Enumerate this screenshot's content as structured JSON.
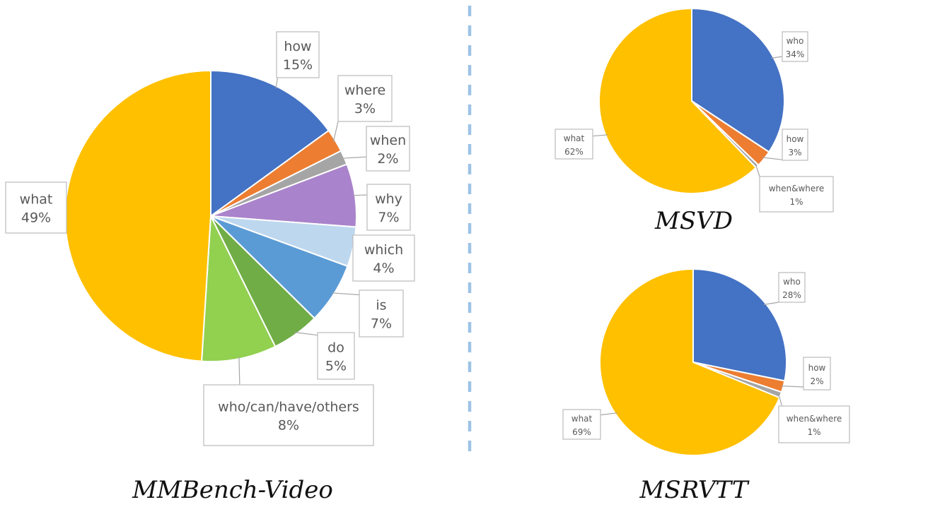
{
  "chart_data": [
    {
      "type": "pie",
      "title": "MMBench-Video",
      "slices": [
        {
          "label": "how",
          "pct_label": "15%",
          "value": 15,
          "color": "#4472c4"
        },
        {
          "label": "where",
          "pct_label": "3%",
          "value": 2.6,
          "color": "#ed7d31"
        },
        {
          "label": "when",
          "pct_label": "2%",
          "value": 1.6,
          "color": "#a5a5a5"
        },
        {
          "label": "why",
          "pct_label": "7%",
          "value": 7.0,
          "color": "#a983cb"
        },
        {
          "label": "which",
          "pct_label": "4%",
          "value": 4.4,
          "color": "#bdd7ee"
        },
        {
          "label": "is",
          "pct_label": "7%",
          "value": 6.8,
          "color": "#5b9bd5"
        },
        {
          "label": "do",
          "pct_label": "5%",
          "value": 5.3,
          "color": "#70ad47"
        },
        {
          "label": "who/can/have/others",
          "pct_label": "8%",
          "value": 8.3,
          "color": "#92d050"
        },
        {
          "label": "what",
          "pct_label": "49%",
          "value": 49.0,
          "color": "#ffc000"
        }
      ]
    },
    {
      "type": "pie",
      "title": "MSVD",
      "slices": [
        {
          "label": "who",
          "pct_label": "34%",
          "value": 34.3,
          "color": "#4472c4"
        },
        {
          "label": "how",
          "pct_label": "3%",
          "value": 2.9,
          "color": "#ed7d31"
        },
        {
          "label": "when&where",
          "pct_label": "1%",
          "value": 0.6,
          "color": "#a5a5a5"
        },
        {
          "label": "what",
          "pct_label": "62%",
          "value": 62.2,
          "color": "#ffc000"
        }
      ]
    },
    {
      "type": "pie",
      "title": "MSRVTT",
      "slices": [
        {
          "label": "who",
          "pct_label": "28%",
          "value": 28.2,
          "color": "#4472c4"
        },
        {
          "label": "how",
          "pct_label": "2%",
          "value": 2.0,
          "color": "#ed7d31"
        },
        {
          "label": "when&where",
          "pct_label": "1%",
          "value": 1.0,
          "color": "#a5a5a5"
        },
        {
          "label": "what",
          "pct_label": "69%",
          "value": 68.8,
          "color": "#ffc000"
        }
      ]
    }
  ]
}
